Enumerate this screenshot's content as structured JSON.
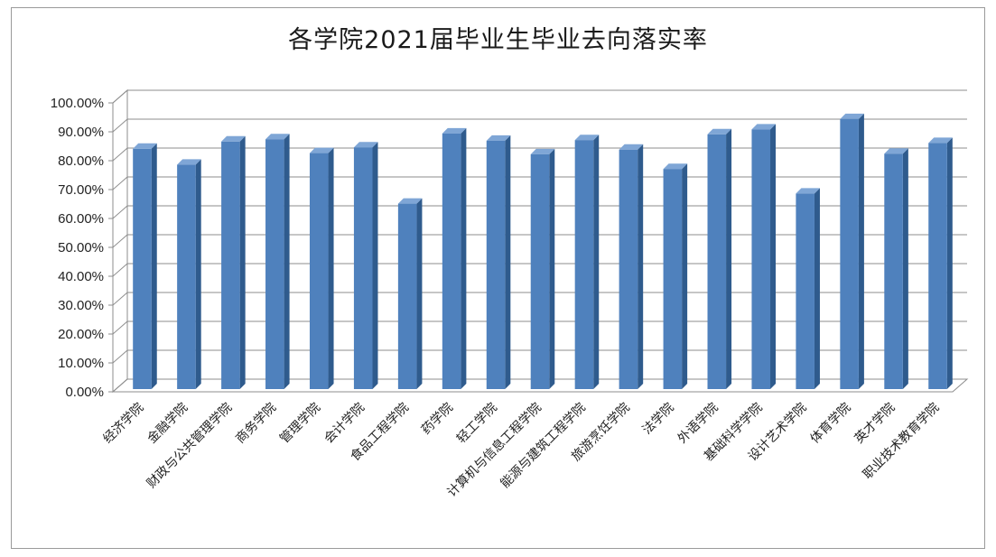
{
  "chart_data": {
    "type": "bar",
    "title": "各学院2021届毕业生毕业去向落实率",
    "xlabel": "",
    "ylabel": "",
    "ylim": [
      0,
      100
    ],
    "yticks": [
      "0.00%",
      "10.00%",
      "20.00%",
      "30.00%",
      "40.00%",
      "50.00%",
      "60.00%",
      "70.00%",
      "80.00%",
      "90.00%",
      "100.00%"
    ],
    "grid": true,
    "legend": "none",
    "bar_color": "#4f81bd",
    "categories": [
      "经济学院",
      "金融学院",
      "财政与公共管理学院",
      "商务学院",
      "管理学院",
      "会计学院",
      "食品工程学院",
      "药学院",
      "轻工学院",
      "计算机与信息工程学院",
      "能源与建筑工程学院",
      "旅游烹饪学院",
      "法学院",
      "外语学院",
      "基础科学学院",
      "设计艺术学院",
      "体育学院",
      "英才学院",
      "职业技术教育学院"
    ],
    "values": [
      83.5,
      78.0,
      86.0,
      86.8,
      82.0,
      84.0,
      64.5,
      88.8,
      86.3,
      81.6,
      86.5,
      83.2,
      76.5,
      88.5,
      90.2,
      68.0,
      93.8,
      81.8,
      85.5
    ]
  }
}
